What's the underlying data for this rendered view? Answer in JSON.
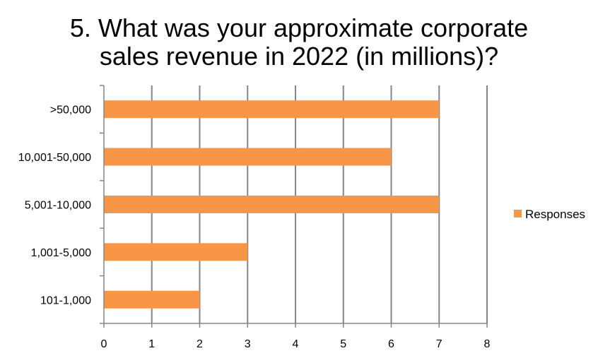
{
  "chart_data": {
    "type": "bar",
    "orientation": "horizontal",
    "title": "5. What was your approximate corporate sales revenue in 2022 (in millions)?",
    "title_lines": [
      "5. What was your approximate corporate",
      "sales revenue in 2022 (in millions)?"
    ],
    "categories": [
      ">50,000",
      "10,001-50,000",
      "5,001-10,000",
      "1,001-5,000",
      "101-1,000"
    ],
    "series": [
      {
        "name": "Responses",
        "values": [
          7,
          6,
          7,
          3,
          2
        ],
        "color": "#F79646"
      }
    ],
    "xlim": [
      0,
      8
    ],
    "x_ticks": [
      "0",
      "1",
      "2",
      "3",
      "4",
      "5",
      "6",
      "7",
      "8"
    ],
    "grid": true,
    "legend_position": "right",
    "xlabel": "",
    "ylabel": ""
  }
}
